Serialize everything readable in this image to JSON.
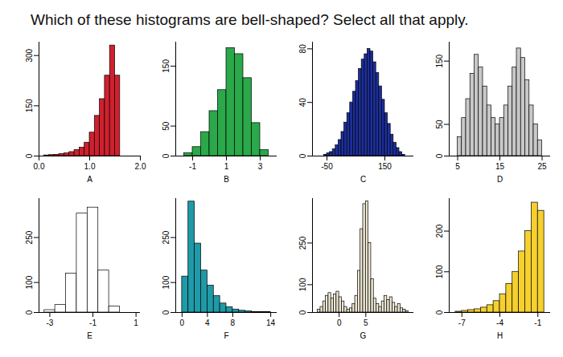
{
  "title": "Which of these histograms are bell-shaped? Select all that apply.",
  "chart_data": [
    {
      "type": "histogram",
      "xlabel": "A",
      "color": "#d0202e",
      "bins": [
        0.1,
        0.2,
        0.3,
        0.4,
        0.5,
        0.6,
        0.7,
        0.8,
        0.9,
        1.0,
        1.1,
        1.2,
        1.3,
        1.4,
        1.5,
        1.6
      ],
      "counts": [
        2,
        3,
        4,
        6,
        8,
        12,
        18,
        25,
        40,
        70,
        120,
        170,
        240,
        330,
        240
      ],
      "xlim": [
        0,
        2
      ],
      "xticks": [
        {
          "value": 0,
          "label": "0.0"
        },
        {
          "value": 1,
          "label": "1.0"
        },
        {
          "value": 2,
          "label": "2.0"
        }
      ],
      "ylim": [
        0,
        340
      ],
      "yticks": [
        0,
        150,
        300
      ]
    },
    {
      "type": "histogram",
      "xlabel": "B",
      "color": "#2aa84a",
      "bins": [
        -1.5,
        -1,
        -0.5,
        0,
        0.5,
        1,
        1.5,
        2,
        2.5,
        3,
        3.5
      ],
      "counts": [
        5,
        15,
        40,
        75,
        110,
        180,
        170,
        130,
        55,
        10
      ],
      "xlim": [
        -2,
        4
      ],
      "xticks": [
        -1,
        1,
        3
      ],
      "ylim": [
        0,
        190
      ],
      "yticks": [
        0,
        50,
        150
      ]
    },
    {
      "type": "histogram",
      "xlabel": "C",
      "color": "#1c2f9e",
      "bins": [
        -60,
        -50,
        -40,
        -30,
        -20,
        -10,
        0,
        10,
        20,
        30,
        40,
        50,
        60,
        70,
        80,
        90,
        100,
        110,
        120,
        130,
        140,
        150,
        160,
        170,
        180,
        190,
        200,
        210,
        220
      ],
      "counts": [
        1,
        2,
        3,
        5,
        8,
        12,
        18,
        25,
        32,
        40,
        48,
        56,
        65,
        72,
        76,
        80,
        78,
        70,
        62,
        52,
        42,
        32,
        24,
        16,
        10,
        6,
        3,
        1
      ],
      "xlim": [
        -100,
        250
      ],
      "xticks": [
        -50,
        150
      ],
      "ylim": [
        0,
        85
      ],
      "yticks": [
        0,
        40,
        80
      ]
    },
    {
      "type": "histogram",
      "xlabel": "D",
      "color": "#c8c8c8",
      "bins": [
        5,
        6,
        7,
        8,
        9,
        10,
        11,
        12,
        13,
        14,
        15,
        16,
        17,
        18,
        19,
        20,
        21,
        22,
        23,
        24,
        25
      ],
      "counts": [
        30,
        60,
        90,
        130,
        160,
        140,
        110,
        80,
        60,
        50,
        60,
        80,
        110,
        140,
        170,
        155,
        120,
        80,
        50,
        25
      ],
      "xlim": [
        3,
        27
      ],
      "xticks": [
        5,
        15,
        25
      ],
      "ylim": [
        0,
        180
      ],
      "yticks": [
        0,
        50,
        150
      ]
    },
    {
      "type": "histogram",
      "xlabel": "E",
      "color": "#ffffff",
      "bins": [
        -3.25,
        -2.75,
        -2.25,
        -1.75,
        -1.25,
        -0.75,
        -0.25,
        0.25
      ],
      "counts": [
        8,
        25,
        130,
        330,
        350,
        140,
        20
      ],
      "xlim": [
        -3.5,
        1.2
      ],
      "xticks": [
        -3,
        -1,
        1
      ],
      "ylim": [
        0,
        380
      ],
      "yticks": [
        0,
        100,
        250
      ]
    },
    {
      "type": "histogram",
      "xlabel": "F",
      "color": "#1e9aa8",
      "bins": [
        0,
        1,
        2,
        3,
        4,
        5,
        6,
        7,
        8,
        9,
        10,
        11,
        12,
        13,
        14
      ],
      "counts": [
        120,
        370,
        230,
        140,
        90,
        55,
        30,
        18,
        10,
        6,
        4,
        2,
        1,
        1
      ],
      "xlim": [
        -1,
        15
      ],
      "xticks": [
        0,
        4,
        8,
        14
      ],
      "ylim": [
        0,
        380
      ],
      "yticks": [
        0,
        100,
        250
      ]
    },
    {
      "type": "histogram",
      "xlabel": "G",
      "color": "#ece6d2",
      "bins": [
        -4,
        -3.5,
        -3,
        -2.5,
        -2,
        -1.5,
        -1,
        -0.5,
        0,
        0.5,
        1,
        1.5,
        2,
        2.5,
        3,
        3.5,
        4,
        4.5,
        5,
        5.5,
        6,
        6.5,
        7,
        7.5,
        8,
        8.5,
        9,
        9.5,
        10,
        10.5,
        11,
        11.5,
        12,
        12.5,
        13
      ],
      "counts": [
        10,
        20,
        40,
        60,
        70,
        50,
        65,
        75,
        55,
        40,
        20,
        10,
        15,
        30,
        60,
        150,
        300,
        390,
        400,
        250,
        120,
        50,
        30,
        20,
        40,
        60,
        45,
        55,
        35,
        20,
        30,
        15,
        10,
        5
      ],
      "xlim": [
        -5,
        14
      ],
      "xticks": [
        0,
        5
      ],
      "ylim": [
        0,
        410
      ],
      "yticks": [
        0,
        100,
        250
      ]
    },
    {
      "type": "histogram",
      "xlabel": "H",
      "color": "#f5d02e",
      "bins": [
        -7.5,
        -7,
        -6.5,
        -6,
        -5.5,
        -5,
        -4.5,
        -4,
        -3.5,
        -3,
        -2.5,
        -2,
        -1.5,
        -1,
        -0.5
      ],
      "counts": [
        2,
        4,
        6,
        8,
        12,
        18,
        28,
        45,
        70,
        100,
        150,
        200,
        270,
        250
      ],
      "xlim": [
        -8,
        0
      ],
      "xticks": [
        -7,
        -4,
        -1
      ],
      "ylim": [
        0,
        280
      ],
      "yticks": [
        0,
        100,
        200
      ]
    }
  ]
}
